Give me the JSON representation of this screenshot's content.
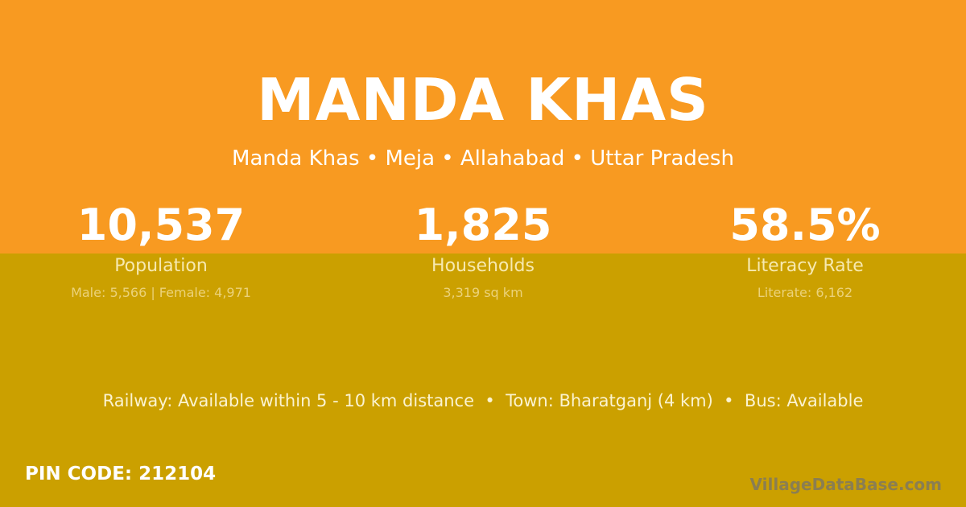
{
  "colors": {
    "top_band": "#F89A21",
    "bottom_band": "#CBA000"
  },
  "title": "MANDA KHAS",
  "subtitle": "Manda Khas • Meja • Allahabad • Uttar Pradesh",
  "stats": [
    {
      "value": "10,537",
      "label": "Population",
      "sub": "Male: 5,566 | Female: 4,971"
    },
    {
      "value": "1,825",
      "label": "Households",
      "sub": "3,319 sq km"
    },
    {
      "value": "58.5%",
      "label": "Literacy Rate",
      "sub": "Literate: 6,162"
    }
  ],
  "info": "Railway: Available within 5 - 10 km distance  •  Town: Bharatganj (4 km)  •  Bus: Available",
  "pin": "PIN CODE: 212104",
  "watermark": "VillageDataBase.com"
}
